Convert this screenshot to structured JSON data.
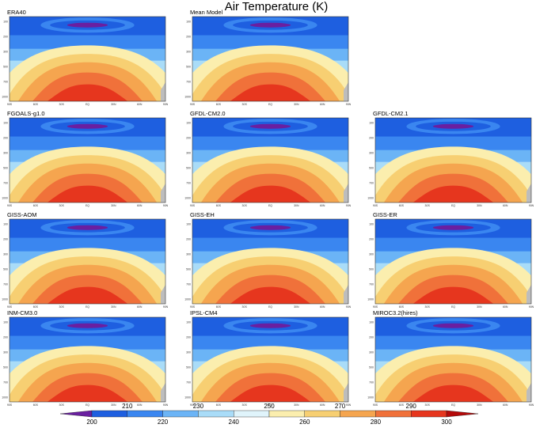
{
  "title": "Air Temperature (K)",
  "chart_data": {
    "type": "heatmap",
    "title": "Air Temperature (K)",
    "variable": "Air Temperature",
    "units": "K",
    "panels": [
      {
        "name": "ERA40"
      },
      {
        "name": "Mean Model"
      },
      {
        "name": "FGOALS-g1.0"
      },
      {
        "name": "GFDL-CM2.0"
      },
      {
        "name": "GFDL-CM2.1"
      },
      {
        "name": "GISS-AOM"
      },
      {
        "name": "GISS-EH"
      },
      {
        "name": "GISS-ER"
      },
      {
        "name": "INM-CM3.0"
      },
      {
        "name": "IPSL-CM4"
      },
      {
        "name": "MIROC3.2(hires)"
      }
    ],
    "x_ticks": [
      "90S",
      "60S",
      "30S",
      "EQ",
      "30N",
      "60N",
      "90N"
    ],
    "y_ticks_left": [
      "100",
      "200",
      "300",
      "500",
      "700",
      "1000"
    ],
    "colorbar": {
      "levels_lower": [
        200,
        220,
        240,
        260,
        280,
        300
      ],
      "levels_upper": [
        210,
        230,
        250,
        270,
        290
      ],
      "range": [
        195,
        305
      ],
      "colors": [
        "#6a1fa0",
        "#1e5fe0",
        "#3a86f0",
        "#6bb4f6",
        "#a9dcf8",
        "#e0f4fb",
        "#fbeeae",
        "#f7cf72",
        "#f5a54f",
        "#f0713a",
        "#e6361e",
        "#b40a0a"
      ]
    }
  }
}
